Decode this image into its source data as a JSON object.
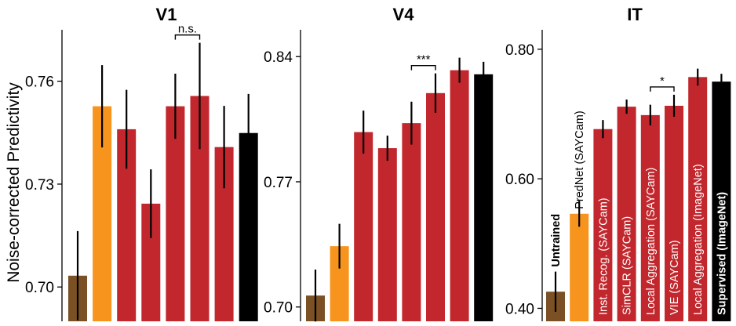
{
  "ylabel": "Noise-corrected Predictivity",
  "colors": {
    "untrained": "#7a5024",
    "prednet": "#f7941d",
    "self_supervised": "#c1272d",
    "supervised": "#000000",
    "text": "#000000"
  },
  "chart_data": [
    {
      "type": "bar",
      "title": "V1",
      "ylim": [
        0.69,
        0.775
      ],
      "yticks": [
        0.7,
        0.73,
        0.76
      ],
      "ytick_labels": [
        "0.70",
        "0.73",
        "0.76"
      ],
      "values": [
        0.7033,
        0.7527,
        0.746,
        0.7243,
        0.7527,
        0.7557,
        0.7408,
        0.7449
      ],
      "errors": [
        0.013,
        0.012,
        0.0115,
        0.01,
        0.0095,
        0.0155,
        0.012,
        0.0114
      ],
      "color_keys": [
        "untrained",
        "prednet",
        "self_supervised",
        "self_supervised",
        "self_supervised",
        "self_supervised",
        "self_supervised",
        "supervised"
      ],
      "significance": [
        {
          "from": 4,
          "to": 5,
          "label": "n.s."
        }
      ]
    },
    {
      "type": "bar",
      "title": "V4",
      "ylim": [
        0.692,
        0.855
      ],
      "yticks": [
        0.7,
        0.77,
        0.84
      ],
      "ytick_labels": [
        "0.70",
        "0.77",
        "0.84"
      ],
      "values": [
        0.7064,
        0.734,
        0.7978,
        0.7888,
        0.8028,
        0.8196,
        0.8324,
        0.8301
      ],
      "errors": [
        0.0145,
        0.0125,
        0.012,
        0.007,
        0.012,
        0.011,
        0.007,
        0.007
      ],
      "color_keys": [
        "untrained",
        "prednet",
        "self_supervised",
        "self_supervised",
        "self_supervised",
        "self_supervised",
        "self_supervised",
        "supervised"
      ],
      "significance": [
        {
          "from": 4,
          "to": 5,
          "label": "***"
        }
      ]
    },
    {
      "type": "bar",
      "title": "IT",
      "ylim": [
        0.38,
        0.83
      ],
      "yticks": [
        0.4,
        0.6,
        0.8
      ],
      "ytick_labels": [
        "0.40",
        "0.60",
        "0.80"
      ],
      "categories": [
        "Untrained",
        "PredNet (SAYCam)",
        "Inst. Recog. (SAYCam)",
        "SimCLR (SAYCam)",
        "Local Aggregation (SAYCam)",
        "VIE (SAYCam)",
        "Local Aggregation (ImageNet)",
        "Supervised (ImageNet)"
      ],
      "bold_categories": [
        "Untrained",
        "Supervised (ImageNet)"
      ],
      "values": [
        0.4257,
        0.546,
        0.6767,
        0.7113,
        0.6983,
        0.7127,
        0.757,
        0.75
      ],
      "errors": [
        0.031,
        0.02,
        0.014,
        0.011,
        0.016,
        0.017,
        0.013,
        0.012
      ],
      "color_keys": [
        "untrained",
        "prednet",
        "self_supervised",
        "self_supervised",
        "self_supervised",
        "self_supervised",
        "self_supervised",
        "supervised"
      ],
      "significance": [
        {
          "from": 4,
          "to": 5,
          "label": "*"
        }
      ]
    }
  ]
}
